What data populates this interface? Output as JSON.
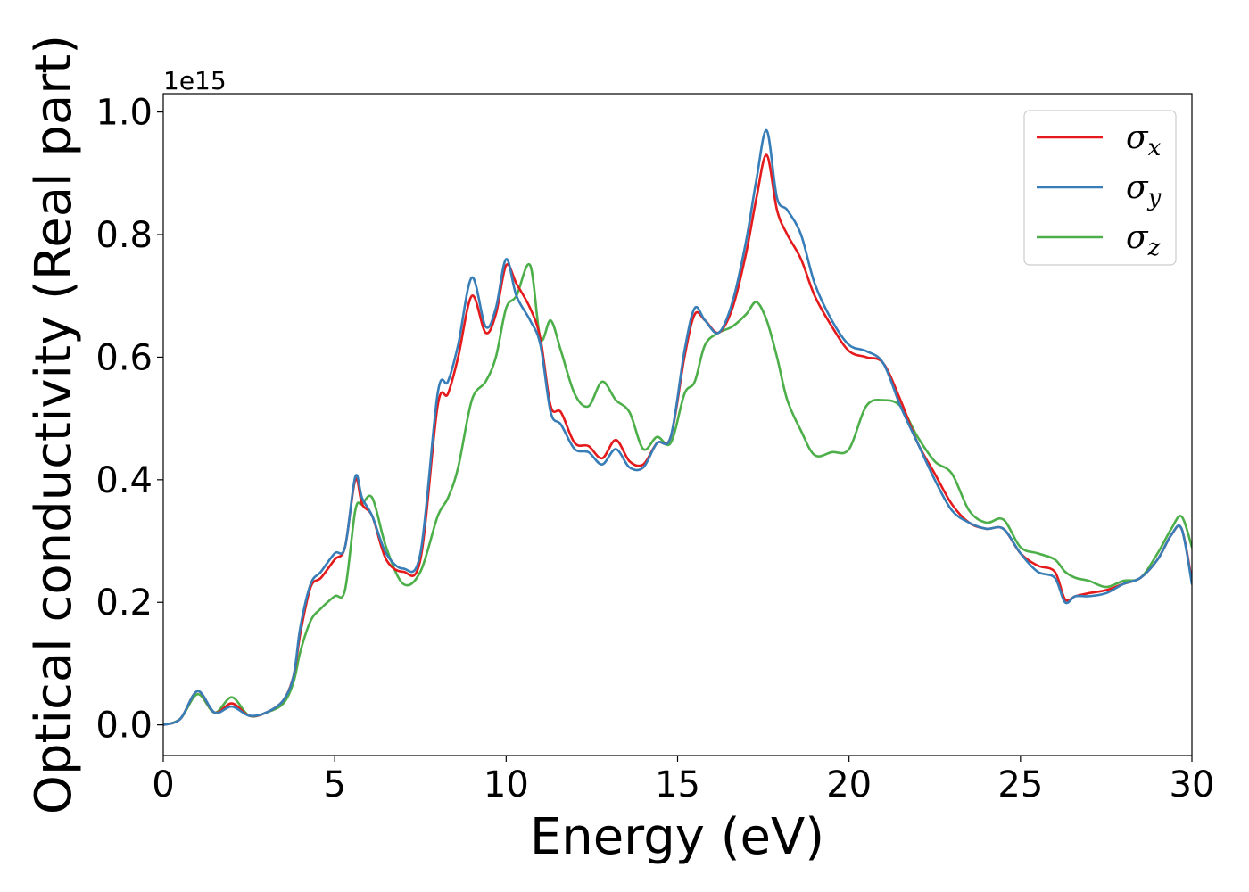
{
  "chart_data": {
    "type": "line",
    "title": "",
    "xlabel": "Energy (eV)",
    "ylabel": "Optical conductivity (Real part)",
    "y_offset_label": "1e15",
    "xlim": [
      0,
      30
    ],
    "ylim": [
      -0.05,
      1.03
    ],
    "xticks": [
      0,
      5,
      10,
      15,
      20,
      25,
      30
    ],
    "xtick_labels": [
      "0",
      "5",
      "10",
      "15",
      "20",
      "25",
      "30"
    ],
    "yticks": [
      0.0,
      0.2,
      0.4,
      0.6,
      0.8,
      1.0
    ],
    "ytick_labels": [
      "0.0",
      "0.2",
      "0.4",
      "0.6",
      "0.8",
      "1.0"
    ],
    "grid": false,
    "legend_position": "top-right",
    "x": [
      0,
      0.5,
      1.0,
      1.5,
      2.0,
      2.5,
      3.0,
      3.5,
      3.8,
      4.0,
      4.3,
      4.6,
      5.0,
      5.3,
      5.6,
      5.8,
      6.1,
      6.5,
      7.0,
      7.5,
      8.0,
      8.3,
      8.6,
      9.0,
      9.4,
      9.7,
      10.0,
      10.3,
      10.7,
      11.0,
      11.3,
      11.6,
      12.0,
      12.4,
      12.8,
      13.2,
      13.6,
      14.0,
      14.4,
      14.8,
      15.2,
      15.5,
      15.8,
      16.2,
      16.6,
      17.0,
      17.3,
      17.6,
      17.9,
      18.2,
      18.6,
      19.0,
      19.5,
      20.0,
      20.5,
      21.0,
      21.5,
      22.0,
      22.5,
      23.0,
      23.5,
      24.0,
      24.5,
      25.0,
      25.5,
      26.0,
      26.3,
      26.6,
      27.0,
      27.5,
      28.0,
      28.5,
      29.0,
      29.4,
      29.7,
      30.0
    ],
    "series": [
      {
        "name": "σx",
        "color": "#e41a1c",
        "values": [
          0.0,
          0.01,
          0.055,
          0.02,
          0.035,
          0.015,
          0.02,
          0.04,
          0.08,
          0.15,
          0.225,
          0.24,
          0.27,
          0.29,
          0.4,
          0.36,
          0.34,
          0.27,
          0.25,
          0.27,
          0.52,
          0.54,
          0.6,
          0.7,
          0.64,
          0.67,
          0.75,
          0.72,
          0.68,
          0.63,
          0.52,
          0.51,
          0.46,
          0.455,
          0.435,
          0.465,
          0.43,
          0.425,
          0.46,
          0.47,
          0.6,
          0.67,
          0.66,
          0.64,
          0.68,
          0.77,
          0.86,
          0.93,
          0.84,
          0.8,
          0.76,
          0.7,
          0.65,
          0.61,
          0.6,
          0.59,
          0.53,
          0.46,
          0.41,
          0.36,
          0.33,
          0.32,
          0.32,
          0.28,
          0.26,
          0.25,
          0.205,
          0.21,
          0.215,
          0.22,
          0.23,
          0.24,
          0.27,
          0.31,
          0.32,
          0.235
        ]
      },
      {
        "name": "σy",
        "color": "#377eb8",
        "values": [
          0.0,
          0.01,
          0.055,
          0.02,
          0.03,
          0.015,
          0.02,
          0.04,
          0.08,
          0.16,
          0.23,
          0.25,
          0.28,
          0.29,
          0.405,
          0.37,
          0.34,
          0.28,
          0.255,
          0.28,
          0.54,
          0.56,
          0.62,
          0.73,
          0.65,
          0.68,
          0.76,
          0.7,
          0.66,
          0.62,
          0.51,
          0.49,
          0.45,
          0.445,
          0.425,
          0.45,
          0.42,
          0.42,
          0.46,
          0.47,
          0.61,
          0.68,
          0.66,
          0.64,
          0.69,
          0.79,
          0.89,
          0.97,
          0.86,
          0.84,
          0.8,
          0.72,
          0.66,
          0.62,
          0.61,
          0.59,
          0.52,
          0.46,
          0.4,
          0.35,
          0.33,
          0.32,
          0.32,
          0.28,
          0.25,
          0.24,
          0.2,
          0.21,
          0.21,
          0.215,
          0.23,
          0.24,
          0.27,
          0.31,
          0.32,
          0.23
        ]
      },
      {
        "name": "σz",
        "color": "#4daf4a",
        "values": [
          0.0,
          0.01,
          0.05,
          0.02,
          0.045,
          0.015,
          0.02,
          0.035,
          0.07,
          0.12,
          0.17,
          0.19,
          0.21,
          0.22,
          0.35,
          0.36,
          0.37,
          0.29,
          0.23,
          0.25,
          0.34,
          0.37,
          0.42,
          0.53,
          0.56,
          0.6,
          0.68,
          0.7,
          0.75,
          0.63,
          0.66,
          0.61,
          0.54,
          0.52,
          0.56,
          0.53,
          0.51,
          0.45,
          0.47,
          0.46,
          0.54,
          0.56,
          0.62,
          0.64,
          0.65,
          0.67,
          0.69,
          0.66,
          0.6,
          0.53,
          0.48,
          0.44,
          0.445,
          0.45,
          0.52,
          0.53,
          0.52,
          0.47,
          0.43,
          0.41,
          0.35,
          0.33,
          0.335,
          0.29,
          0.28,
          0.27,
          0.25,
          0.24,
          0.235,
          0.225,
          0.235,
          0.24,
          0.28,
          0.32,
          0.34,
          0.29
        ]
      }
    ]
  }
}
